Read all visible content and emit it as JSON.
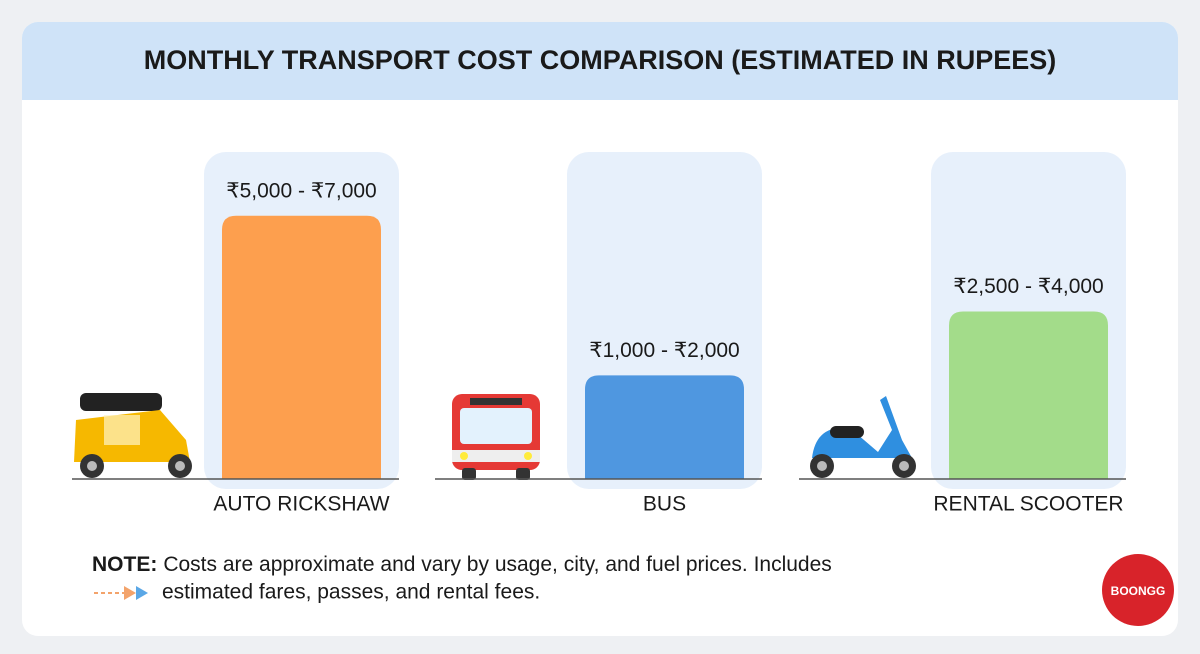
{
  "chart_data": {
    "type": "bar",
    "title": "MONTHLY TRANSPORT COST COMPARISON (ESTIMATED IN RUPEES)",
    "categories": [
      "AUTO RICKSHAW",
      "BUS",
      "RENTAL SCOOTER"
    ],
    "values": [
      [
        5000,
        7000
      ],
      [
        1000,
        2000
      ],
      [
        2500,
        4000
      ]
    ],
    "value_labels": [
      "₹5,000 - ₹7,000",
      "₹1,000 - ₹2,000",
      "₹2,500 - ₹4,000"
    ],
    "colors": [
      "#fd9f4e",
      "#4f97e0",
      "#a3dc8a"
    ],
    "ylim": [
      -1250,
      9000
    ],
    "note_label": "NOTE:",
    "note": [
      "Costs are approximate and vary by usage, city, and fuel prices. Includes",
      "estimated fares, passes, and rental fees."
    ],
    "logo": "BOONGG"
  }
}
